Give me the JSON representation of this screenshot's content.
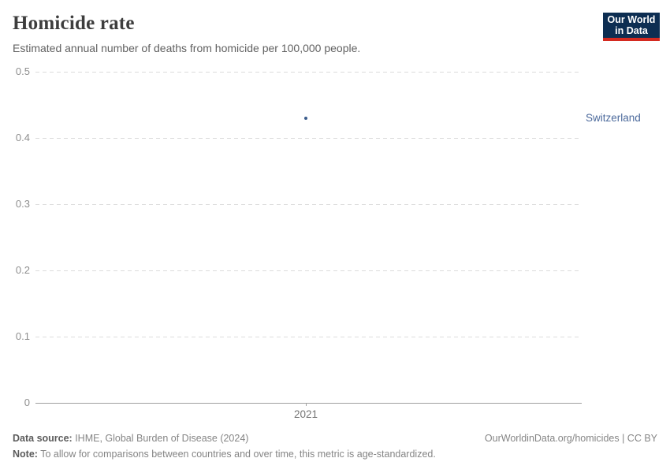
{
  "header": {
    "title": "Homicide rate",
    "subtitle": "Estimated annual number of deaths from homicide per 100,000 people.",
    "logo": {
      "line1": "Our World",
      "line2": "in Data",
      "bg_color": "#0d2e52",
      "accent_color": "#d42a20"
    }
  },
  "chart_data": {
    "type": "scatter",
    "title": "Homicide rate",
    "subtitle": "Estimated annual number of deaths from homicide per 100,000 people.",
    "series": [
      {
        "name": "Switzerland",
        "x": [
          2021
        ],
        "values": [
          0.43
        ],
        "color": "#3a5c8c"
      }
    ],
    "xlabel": "",
    "ylabel": "",
    "x_ticks": [
      "2021"
    ],
    "y_ticks": [
      0,
      0.1,
      0.2,
      0.3,
      0.4,
      0.5
    ],
    "ylim": [
      0,
      0.5
    ],
    "grid": "horizontal-dashed",
    "legend_position": "right-of-point",
    "entity_label": "Switzerland",
    "entity_label_color": "#4c6a9c"
  },
  "footer": {
    "data_source_label": "Data source:",
    "data_source_value": " IHME, Global Burden of Disease (2024)",
    "note_label": "Note:",
    "note_value": " To allow for comparisons between countries and over time, this metric is age-standardized.",
    "rights": "OurWorldinData.org/homicides | CC BY"
  }
}
